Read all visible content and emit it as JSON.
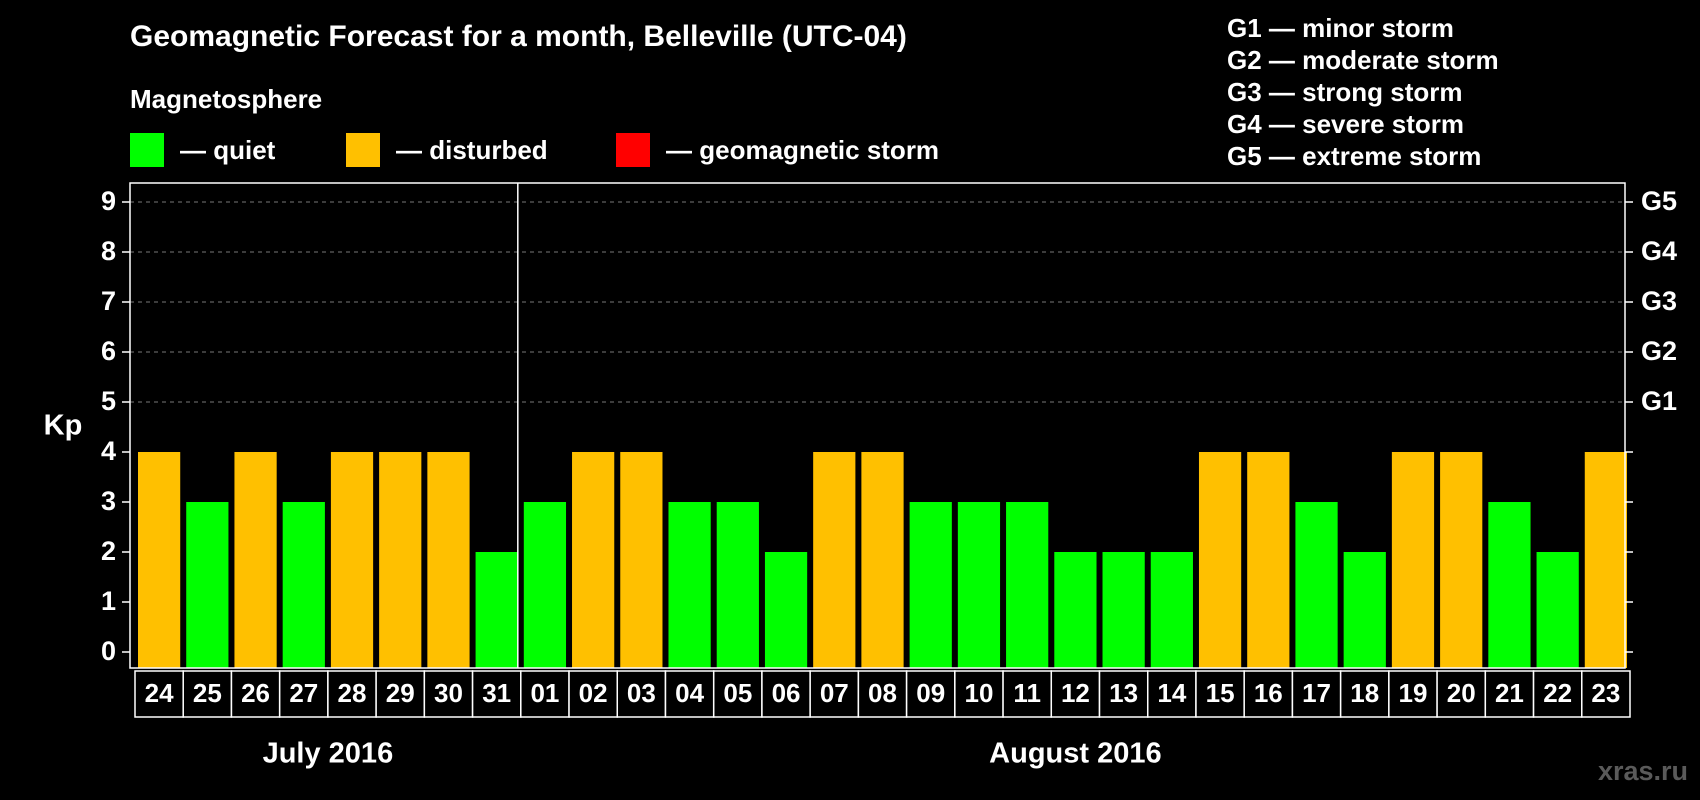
{
  "header": {
    "title": "Geomagnetic Forecast for a month, Belleville (UTC-04)",
    "subtitle": "Magnetosphere"
  },
  "legend": [
    {
      "label": "— quiet",
      "color": "#00ff00"
    },
    {
      "label": "— disturbed",
      "color": "#ffc000"
    },
    {
      "label": "— geomagnetic storm",
      "color": "#ff0000"
    }
  ],
  "g_scale_legend": [
    "G1 — minor storm",
    "G2 — moderate storm",
    "G3 — strong storm",
    "G4 — severe storm",
    "G5 — extreme storm"
  ],
  "watermark": "xras.ru",
  "chart_data": {
    "type": "bar",
    "ylabel": "Kp",
    "ylim": [
      0,
      9
    ],
    "y_ticks": [
      "0",
      "1",
      "2",
      "3",
      "4",
      "5",
      "6",
      "7",
      "8",
      "9"
    ],
    "right_axis_labels": [
      {
        "kp": 5,
        "label": "G1"
      },
      {
        "kp": 6,
        "label": "G2"
      },
      {
        "kp": 7,
        "label": "G3"
      },
      {
        "kp": 8,
        "label": "G4"
      },
      {
        "kp": 9,
        "label": "G5"
      }
    ],
    "categories": [
      "24",
      "25",
      "26",
      "27",
      "28",
      "29",
      "30",
      "31",
      "01",
      "02",
      "03",
      "04",
      "05",
      "06",
      "07",
      "08",
      "09",
      "10",
      "11",
      "12",
      "13",
      "14",
      "15",
      "16",
      "17",
      "18",
      "19",
      "20",
      "21",
      "22",
      "23"
    ],
    "values": [
      4,
      3,
      4,
      3,
      4,
      4,
      4,
      2,
      3,
      4,
      4,
      3,
      3,
      2,
      4,
      4,
      3,
      3,
      3,
      2,
      2,
      2,
      4,
      4,
      3,
      2,
      4,
      4,
      3,
      2,
      4
    ],
    "months": [
      {
        "label": "July 2016",
        "from": 0,
        "to": 7
      },
      {
        "label": "August 2016",
        "from": 8,
        "to": 30
      }
    ],
    "color_rule": {
      "quiet_max": 3,
      "quiet": "#00ff00",
      "disturbed": "#ffc000",
      "storm": "#ff0000",
      "storm_min": 5
    },
    "grid": true
  }
}
